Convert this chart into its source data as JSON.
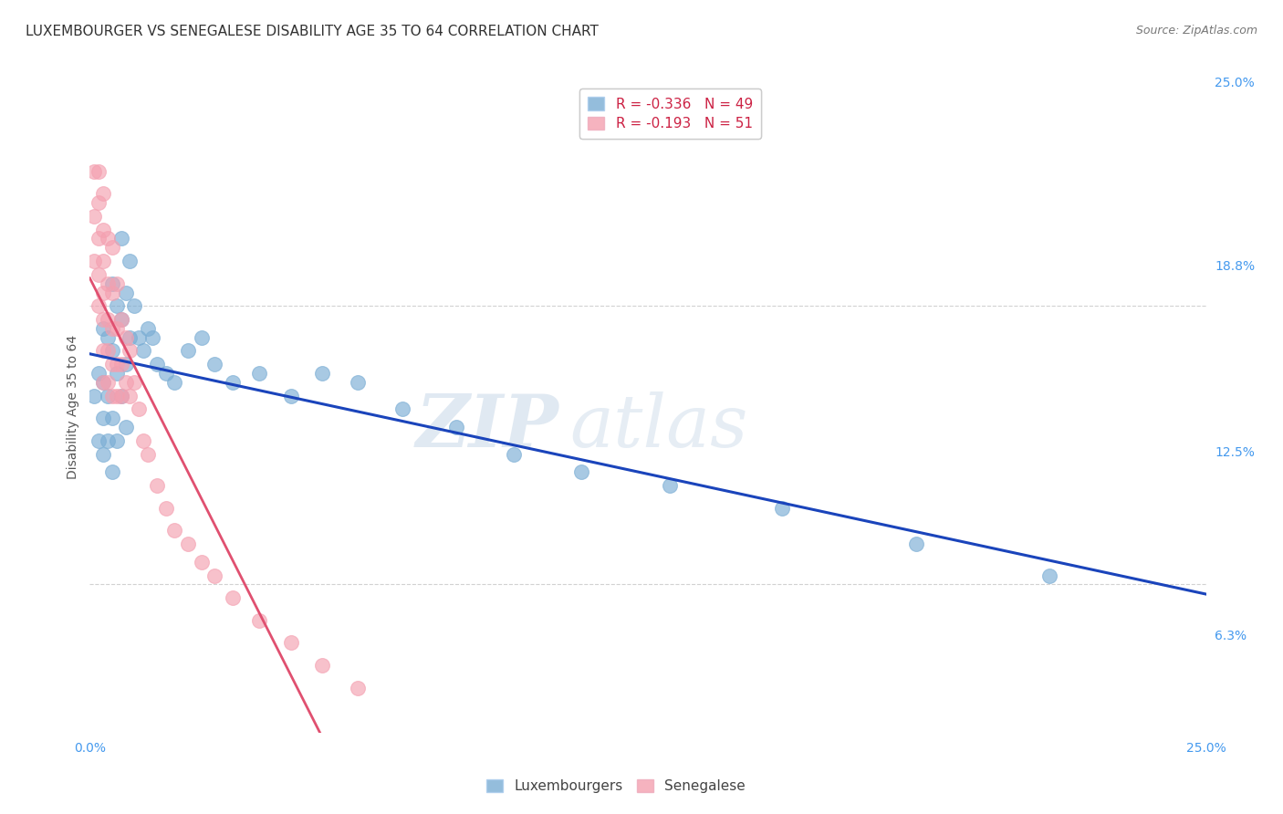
{
  "title": "LUXEMBOURGER VS SENEGALESE DISABILITY AGE 35 TO 64 CORRELATION CHART",
  "source": "Source: ZipAtlas.com",
  "ylabel": "Disability Age 35 to 64",
  "xlim": [
    0.0,
    0.25
  ],
  "ylim": [
    0.03,
    0.175
  ],
  "ytick_right_values": [
    0.063,
    0.125,
    0.188,
    0.25
  ],
  "ytick_right_labels": [
    "6.3%",
    "12.5%",
    "18.8%",
    "25.0%"
  ],
  "grid_color": "#cccccc",
  "background_color": "#ffffff",
  "lux_color": "#7aadd4",
  "sen_color": "#f4a0b0",
  "lux_line_color": "#1a44bb",
  "sen_line_color": "#e05070",
  "sen_line_dashed_color": "#e8b0bc",
  "R_lux": -0.336,
  "N_lux": 49,
  "R_sen": -0.193,
  "N_sen": 51,
  "legend_lux": "Luxembourgers",
  "legend_sen": "Senegalese",
  "lux_x": [
    0.001,
    0.002,
    0.002,
    0.003,
    0.003,
    0.003,
    0.003,
    0.004,
    0.004,
    0.004,
    0.005,
    0.005,
    0.005,
    0.005,
    0.006,
    0.006,
    0.006,
    0.007,
    0.007,
    0.007,
    0.008,
    0.008,
    0.008,
    0.009,
    0.009,
    0.01,
    0.011,
    0.012,
    0.013,
    0.014,
    0.015,
    0.017,
    0.019,
    0.022,
    0.025,
    0.028,
    0.032,
    0.038,
    0.045,
    0.052,
    0.06,
    0.07,
    0.082,
    0.095,
    0.11,
    0.13,
    0.155,
    0.185,
    0.215
  ],
  "lux_y": [
    0.105,
    0.11,
    0.095,
    0.12,
    0.108,
    0.1,
    0.092,
    0.118,
    0.105,
    0.095,
    0.13,
    0.115,
    0.1,
    0.088,
    0.125,
    0.11,
    0.095,
    0.14,
    0.122,
    0.105,
    0.128,
    0.112,
    0.098,
    0.135,
    0.118,
    0.125,
    0.118,
    0.115,
    0.12,
    0.118,
    0.112,
    0.11,
    0.108,
    0.115,
    0.118,
    0.112,
    0.108,
    0.11,
    0.105,
    0.11,
    0.108,
    0.102,
    0.098,
    0.092,
    0.088,
    0.085,
    0.08,
    0.072,
    0.065
  ],
  "sen_x": [
    0.001,
    0.001,
    0.001,
    0.002,
    0.002,
    0.002,
    0.002,
    0.002,
    0.003,
    0.003,
    0.003,
    0.003,
    0.003,
    0.003,
    0.003,
    0.004,
    0.004,
    0.004,
    0.004,
    0.004,
    0.005,
    0.005,
    0.005,
    0.005,
    0.005,
    0.006,
    0.006,
    0.006,
    0.006,
    0.007,
    0.007,
    0.007,
    0.008,
    0.008,
    0.009,
    0.009,
    0.01,
    0.011,
    0.012,
    0.013,
    0.015,
    0.017,
    0.019,
    0.022,
    0.025,
    0.028,
    0.032,
    0.038,
    0.045,
    0.052,
    0.06
  ],
  "sen_y": [
    0.155,
    0.145,
    0.135,
    0.155,
    0.148,
    0.14,
    0.132,
    0.125,
    0.15,
    0.142,
    0.135,
    0.128,
    0.122,
    0.115,
    0.108,
    0.14,
    0.13,
    0.122,
    0.115,
    0.108,
    0.138,
    0.128,
    0.12,
    0.112,
    0.105,
    0.13,
    0.12,
    0.112,
    0.105,
    0.122,
    0.112,
    0.105,
    0.118,
    0.108,
    0.115,
    0.105,
    0.108,
    0.102,
    0.095,
    0.092,
    0.085,
    0.08,
    0.075,
    0.072,
    0.068,
    0.065,
    0.06,
    0.055,
    0.05,
    0.045,
    0.04
  ],
  "watermark_zip": "ZIP",
  "watermark_atlas": "atlas",
  "title_fontsize": 11,
  "axis_label_fontsize": 10,
  "tick_fontsize": 9,
  "legend_fontsize": 11
}
